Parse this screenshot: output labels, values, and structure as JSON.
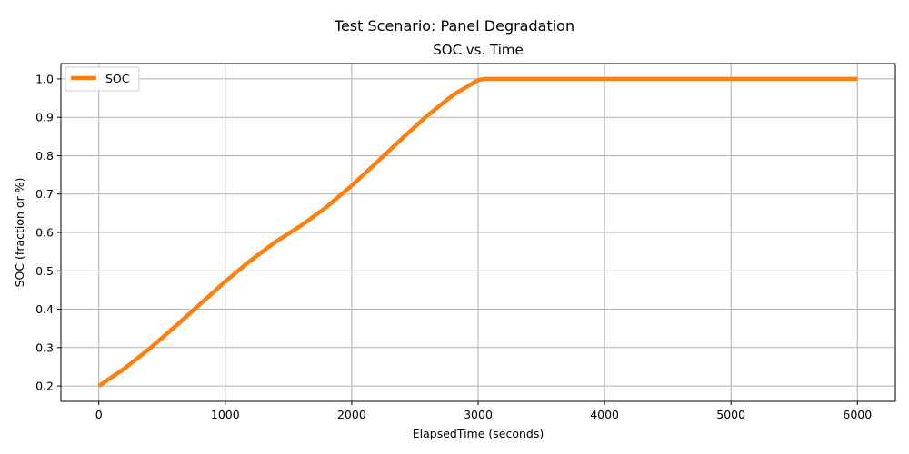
{
  "figure": {
    "suptitle": "Test Scenario: Panel Degradation"
  },
  "chart_data": {
    "type": "line",
    "title": "SOC vs. Time",
    "xlabel": "ElapsedTime (seconds)",
    "ylabel": "SOC (fraction or %)",
    "xlim": [
      -300,
      6300
    ],
    "ylim": [
      0.16,
      1.04
    ],
    "x_ticks": [
      0,
      1000,
      2000,
      3000,
      4000,
      5000,
      6000
    ],
    "y_ticks": [
      0.2,
      0.3,
      0.4,
      0.5,
      0.6,
      0.7,
      0.8,
      0.9,
      1.0
    ],
    "x_tick_labels": [
      "0",
      "1000",
      "2000",
      "3000",
      "4000",
      "5000",
      "6000"
    ],
    "y_tick_labels": [
      "0.2",
      "0.3",
      "0.4",
      "0.5",
      "0.6",
      "0.7",
      "0.8",
      "0.9",
      "1.0"
    ],
    "grid": true,
    "legend_position": "upper-left",
    "series": [
      {
        "name": "SOC",
        "color": "#ff7f0e",
        "x": [
          0,
          200,
          400,
          600,
          800,
          1000,
          1200,
          1400,
          1600,
          1800,
          2000,
          2200,
          2400,
          2600,
          2800,
          3000,
          3050,
          3500,
          4000,
          4500,
          5000,
          5500,
          6000
        ],
        "y": [
          0.2,
          0.245,
          0.297,
          0.354,
          0.413,
          0.472,
          0.527,
          0.576,
          0.618,
          0.666,
          0.722,
          0.783,
          0.845,
          0.905,
          0.958,
          0.997,
          1.0,
          1.0,
          1.0,
          1.0,
          1.0,
          1.0,
          1.0
        ]
      }
    ]
  }
}
